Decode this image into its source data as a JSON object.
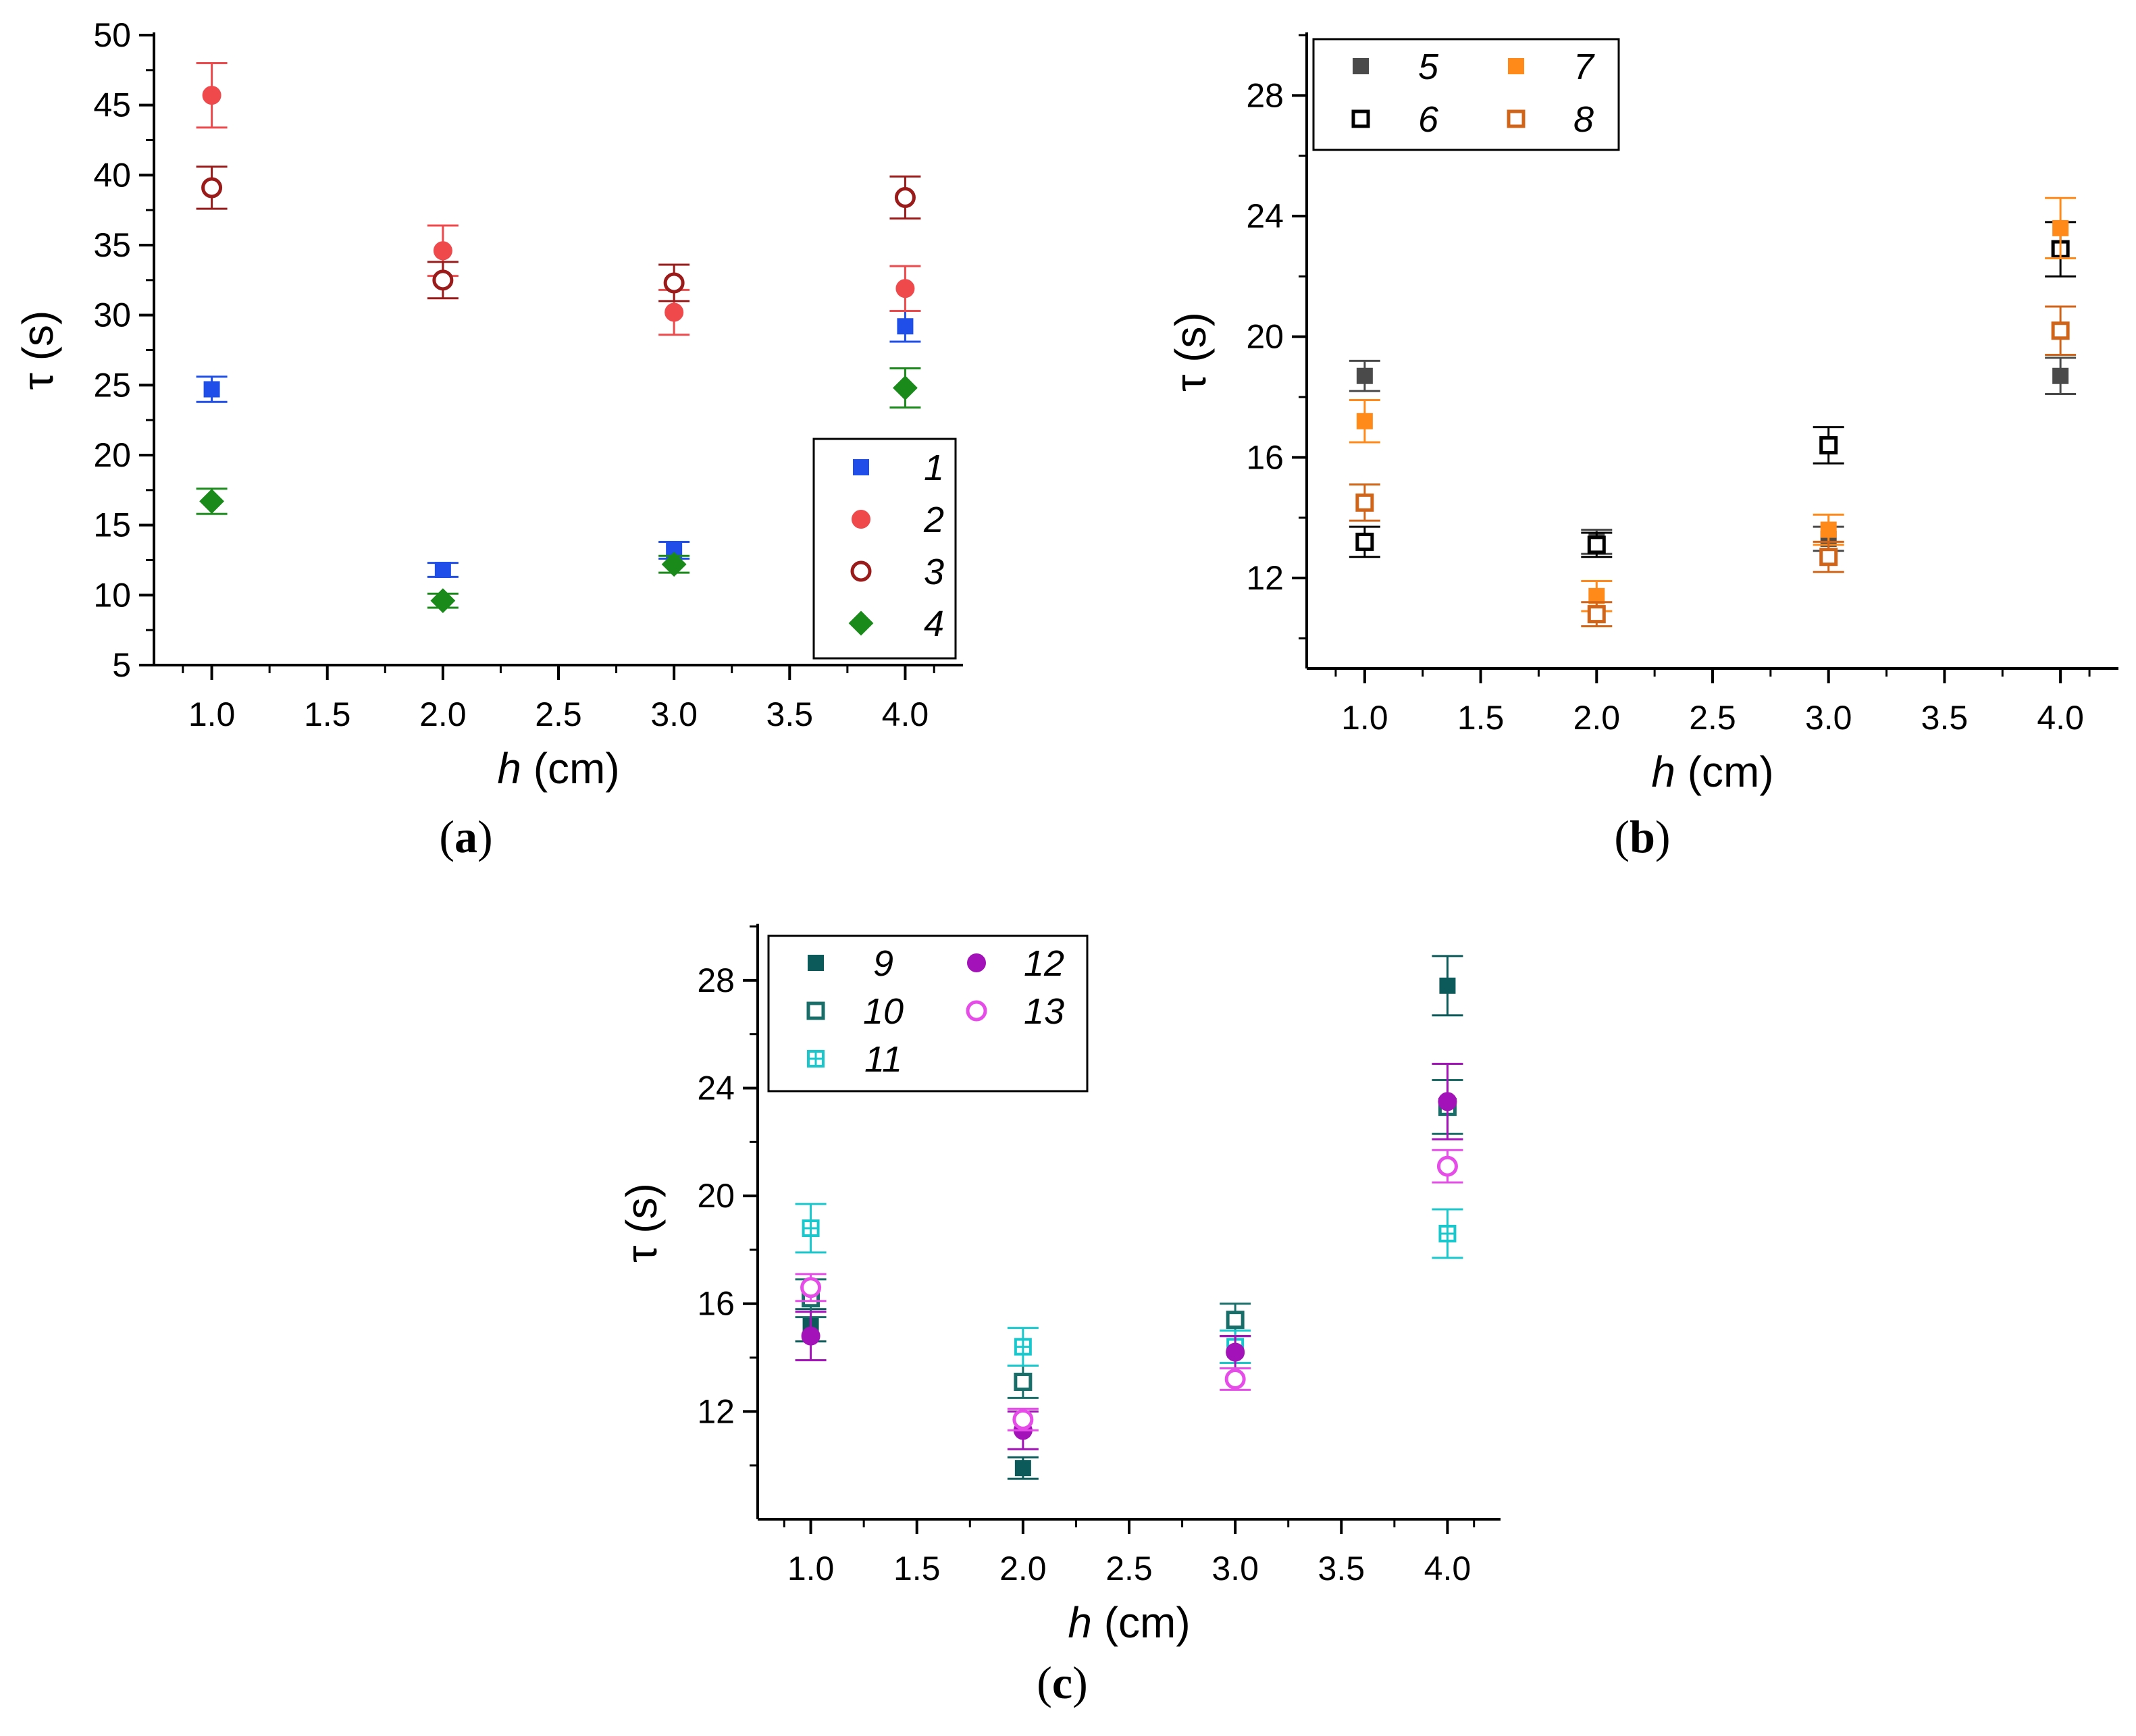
{
  "chart_data": [
    {
      "id": "a",
      "type": "scatter",
      "caption_letter": "a",
      "xlabel": "h",
      "xlabel_unit": " (cm)",
      "ylabel": "τ (s)",
      "xlim": [
        0.75,
        4.25
      ],
      "ylim": [
        5,
        50
      ],
      "xticks": [
        "1.0",
        "1.5",
        "2.0",
        "2.5",
        "3.0",
        "3.5",
        "4.0"
      ],
      "yticks": [
        "5",
        "10",
        "15",
        "20",
        "25",
        "30",
        "35",
        "40",
        "45",
        "50"
      ],
      "legend_columns": 1,
      "series": [
        {
          "name": "1",
          "marker": "square",
          "filled": true,
          "color": "#1f4fe8",
          "points": [
            [
              1.0,
              24.7,
              0.9
            ],
            [
              2.0,
              11.8,
              0.5
            ],
            [
              3.0,
              13.2,
              0.6
            ],
            [
              4.0,
              29.2,
              1.1
            ]
          ]
        },
        {
          "name": "2",
          "marker": "circle",
          "filled": true,
          "color": "#f0494c",
          "points": [
            [
              1.0,
              45.7,
              2.3
            ],
            [
              2.0,
              34.6,
              1.8
            ],
            [
              3.0,
              30.2,
              1.6
            ],
            [
              4.0,
              31.9,
              1.6
            ]
          ]
        },
        {
          "name": "3",
          "marker": "circle",
          "filled": false,
          "color": "#9b1b1b",
          "points": [
            [
              1.0,
              39.1,
              1.5
            ],
            [
              2.0,
              32.5,
              1.3
            ],
            [
              3.0,
              32.3,
              1.3
            ],
            [
              4.0,
              38.4,
              1.5
            ]
          ]
        },
        {
          "name": "4",
          "marker": "diamond",
          "filled": true,
          "color": "#1a8a1a",
          "points": [
            [
              1.0,
              16.7,
              0.9
            ],
            [
              2.0,
              9.6,
              0.5
            ],
            [
              3.0,
              12.2,
              0.6
            ],
            [
              4.0,
              24.8,
              1.4
            ]
          ]
        }
      ]
    },
    {
      "id": "b",
      "type": "scatter",
      "caption_letter": "b",
      "xlabel": "h",
      "xlabel_unit": " (cm)",
      "ylabel": "τ (s)",
      "xlim": [
        0.75,
        4.25
      ],
      "ylim": [
        9,
        30
      ],
      "xticks": [
        "1.0",
        "1.5",
        "2.0",
        "2.5",
        "3.0",
        "3.5",
        "4.0"
      ],
      "yticks": [
        "12",
        "16",
        "20",
        "24",
        "28"
      ],
      "legend_columns": 2,
      "series": [
        {
          "name": "5",
          "marker": "square",
          "filled": true,
          "color": "#4a4a4a",
          "points": [
            [
              1.0,
              18.7,
              0.5
            ],
            [
              2.0,
              13.2,
              0.4
            ],
            [
              3.0,
              13.3,
              0.4
            ],
            [
              4.0,
              18.7,
              0.6
            ]
          ]
        },
        {
          "name": "6",
          "marker": "square",
          "filled": false,
          "color": "#000000",
          "points": [
            [
              1.0,
              13.2,
              0.5
            ],
            [
              2.0,
              13.1,
              0.4
            ],
            [
              3.0,
              16.4,
              0.6
            ],
            [
              4.0,
              22.9,
              0.9
            ]
          ]
        },
        {
          "name": "7",
          "marker": "square",
          "filled": true,
          "color": "#ff8a1a",
          "points": [
            [
              1.0,
              17.2,
              0.7
            ],
            [
              2.0,
              11.4,
              0.5
            ],
            [
              3.0,
              13.6,
              0.5
            ],
            [
              4.0,
              23.6,
              1.0
            ]
          ]
        },
        {
          "name": "8",
          "marker": "square",
          "filled": false,
          "color": "#d0651a",
          "points": [
            [
              1.0,
              14.5,
              0.6
            ],
            [
              2.0,
              10.8,
              0.4
            ],
            [
              3.0,
              12.7,
              0.5
            ],
            [
              4.0,
              20.2,
              0.8
            ]
          ]
        }
      ]
    },
    {
      "id": "c",
      "type": "scatter",
      "caption_letter": "c",
      "xlabel": "h",
      "xlabel_unit": " (cm)",
      "ylabel": "τ (s)",
      "xlim": [
        0.75,
        4.25
      ],
      "ylim": [
        8,
        30
      ],
      "xticks": [
        "1.0",
        "1.5",
        "2.0",
        "2.5",
        "3.0",
        "3.5",
        "4.0"
      ],
      "yticks": [
        "12",
        "16",
        "20",
        "24",
        "28"
      ],
      "legend_columns": 2,
      "series": [
        {
          "name": "9",
          "marker": "square",
          "filled": true,
          "color": "#0d5a5a",
          "points": [
            [
              1.0,
              15.2,
              0.6
            ],
            [
              2.0,
              9.9,
              0.4
            ],
            [
              3.0,
              14.3,
              0.5
            ],
            [
              4.0,
              27.8,
              1.1
            ]
          ]
        },
        {
          "name": "10",
          "marker": "square",
          "filled": false,
          "color": "#1a6e6a",
          "points": [
            [
              1.0,
              16.2,
              0.7
            ],
            [
              2.0,
              13.1,
              0.6
            ],
            [
              3.0,
              15.4,
              0.6
            ],
            [
              4.0,
              23.3,
              1.0
            ]
          ]
        },
        {
          "name": "11",
          "marker": "square-cross",
          "filled": false,
          "color": "#19c8cc",
          "points": [
            [
              1.0,
              18.8,
              0.9
            ],
            [
              2.0,
              14.4,
              0.7
            ],
            [
              3.0,
              14.4,
              0.6
            ],
            [
              4.0,
              18.6,
              0.9
            ]
          ]
        },
        {
          "name": "12",
          "marker": "circle",
          "filled": true,
          "color": "#a312b8",
          "points": [
            [
              1.0,
              14.8,
              0.9
            ],
            [
              2.0,
              11.3,
              0.7
            ],
            [
              3.0,
              14.2,
              0.6
            ],
            [
              4.0,
              23.5,
              1.4
            ]
          ]
        },
        {
          "name": "13",
          "marker": "circle",
          "filled": false,
          "color": "#e54ce8",
          "points": [
            [
              1.0,
              16.6,
              0.5
            ],
            [
              2.0,
              11.7,
              0.4
            ],
            [
              3.0,
              13.2,
              0.4
            ],
            [
              4.0,
              21.1,
              0.6
            ]
          ]
        }
      ]
    }
  ]
}
